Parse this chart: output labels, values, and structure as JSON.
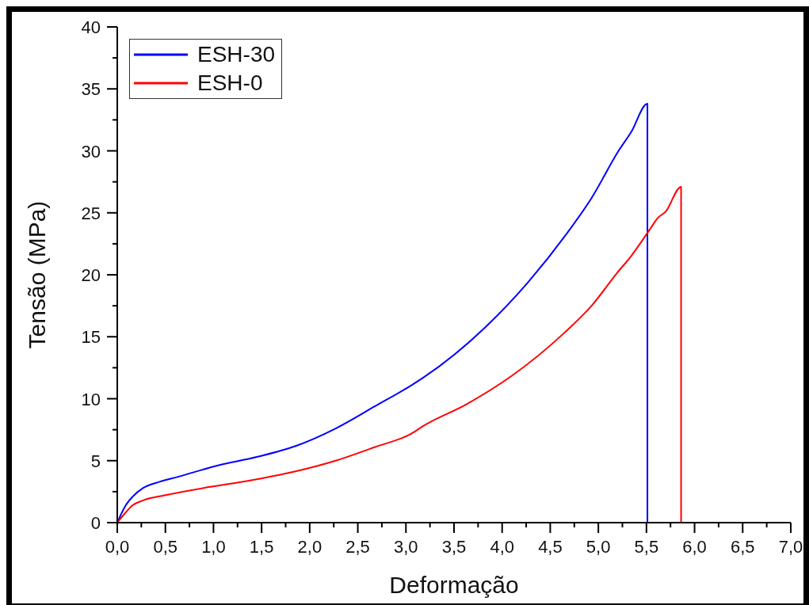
{
  "chart_data": {
    "type": "line",
    "xlabel": "Deformação",
    "ylabel": "Tensão (MPa)",
    "xlim": [
      0,
      7
    ],
    "ylim": [
      0,
      40
    ],
    "xticks": [
      {
        "value": 0,
        "label": "0,0"
      },
      {
        "value": 0.25,
        "label": null
      },
      {
        "value": 0.5,
        "label": "0,5"
      },
      {
        "value": 0.75,
        "label": null
      },
      {
        "value": 1,
        "label": "1,0"
      },
      {
        "value": 1.25,
        "label": null
      },
      {
        "value": 1.5,
        "label": "1,5"
      },
      {
        "value": 1.75,
        "label": null
      },
      {
        "value": 2,
        "label": "2,0"
      },
      {
        "value": 2.25,
        "label": null
      },
      {
        "value": 2.5,
        "label": "2,5"
      },
      {
        "value": 2.75,
        "label": null
      },
      {
        "value": 3,
        "label": "3,0"
      },
      {
        "value": 3.25,
        "label": null
      },
      {
        "value": 3.5,
        "label": "3,5"
      },
      {
        "value": 3.75,
        "label": null
      },
      {
        "value": 4,
        "label": "4,0"
      },
      {
        "value": 4.25,
        "label": null
      },
      {
        "value": 4.5,
        "label": "4,5"
      },
      {
        "value": 4.75,
        "label": null
      },
      {
        "value": 5,
        "label": "5,0"
      },
      {
        "value": 5.25,
        "label": null
      },
      {
        "value": 5.5,
        "label": "5,5"
      },
      {
        "value": 5.75,
        "label": null
      },
      {
        "value": 6,
        "label": "6,0"
      },
      {
        "value": 6.25,
        "label": null
      },
      {
        "value": 6.5,
        "label": "6,5"
      },
      {
        "value": 6.75,
        "label": null
      },
      {
        "value": 7,
        "label": "7,0"
      }
    ],
    "yticks": [
      0,
      {
        "value": 2.5,
        "label": null
      },
      5,
      {
        "value": 7.5,
        "label": null
      },
      10,
      {
        "value": 12.5,
        "label": null
      },
      15,
      {
        "value": 17.5,
        "label": null
      },
      20,
      {
        "value": 22.5,
        "label": null
      },
      25,
      {
        "value": 27.5,
        "label": null
      },
      30,
      {
        "value": 32.5,
        "label": null
      },
      35,
      {
        "value": 37.5,
        "label": null
      },
      40
    ],
    "legend": "top left",
    "series": [
      {
        "name": "ESH-30",
        "color": "#0000ff",
        "x": [
          0,
          0.08,
          0.16,
          0.27,
          0.44,
          0.63,
          1.04,
          1.45,
          1.86,
          2.27,
          2.68,
          3.06,
          3.18,
          3.83,
          4.27,
          4.66,
          4.93,
          5.21,
          5.34,
          5.51,
          5.51
        ],
        "values": [
          0,
          1.3,
          2.1,
          2.8,
          3.3,
          3.7,
          4.6,
          5.3,
          6.2,
          7.6,
          9.4,
          11.1,
          11.7,
          15.8,
          19.4,
          23.2,
          26.2,
          30.0,
          31.5,
          33.8,
          0
        ]
      },
      {
        "name": "ESH-0",
        "color": "#ff0000",
        "x": [
          0,
          0.08,
          0.16,
          0.27,
          0.49,
          0.9,
          1.31,
          1.86,
          2.27,
          2.68,
          3.06,
          3.18,
          3.64,
          4.11,
          4.63,
          4.93,
          5.2,
          5.34,
          5.53,
          5.62,
          5.7,
          5.86,
          5.86
        ],
        "values": [
          0,
          0.75,
          1.4,
          1.8,
          2.2,
          2.8,
          3.3,
          4.15,
          5.0,
          6.1,
          7.2,
          7.8,
          9.6,
          11.9,
          15.2,
          17.5,
          20.2,
          21.5,
          23.6,
          24.6,
          25.1,
          27.1,
          0
        ]
      }
    ]
  }
}
